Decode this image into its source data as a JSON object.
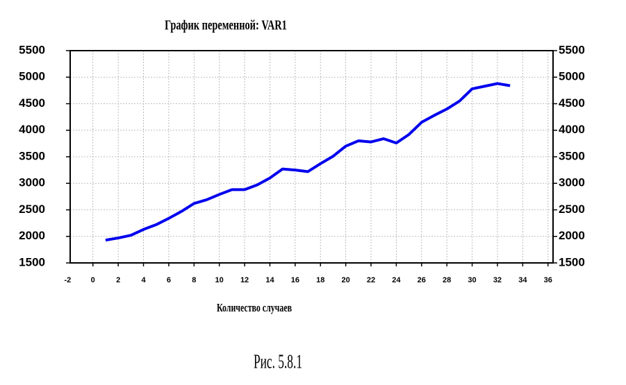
{
  "chart_data": {
    "type": "line",
    "title": "График переменной:  VAR1",
    "x_label": "Количество случаев",
    "caption": "Рис. 5.8.1",
    "x": [
      1,
      2,
      3,
      4,
      5,
      6,
      7,
      8,
      9,
      10,
      11,
      12,
      13,
      14,
      15,
      16,
      17,
      18,
      19,
      20,
      21,
      22,
      23,
      24,
      25,
      26,
      27,
      28,
      29,
      30,
      31,
      32,
      33
    ],
    "series": [
      {
        "name": "VAR1",
        "color": "#0000ee",
        "values": [
          1930,
          1970,
          2020,
          2130,
          2220,
          2340,
          2470,
          2620,
          2690,
          2790,
          2880,
          2880,
          2970,
          3100,
          3270,
          3250,
          3220,
          3370,
          3510,
          3700,
          3800,
          3780,
          3840,
          3760,
          3920,
          4150,
          4280,
          4400,
          4550,
          4780,
          4830,
          4880,
          4840
        ]
      }
    ],
    "xlim": [
      -1.8,
      36.4
    ],
    "xticks": [
      -2,
      0,
      2,
      4,
      6,
      8,
      10,
      12,
      14,
      16,
      18,
      20,
      22,
      24,
      26,
      28,
      30,
      32,
      34,
      36
    ],
    "ylim": [
      1500,
      5500
    ],
    "yticks": [
      1500,
      2000,
      2500,
      3000,
      3500,
      4000,
      4500,
      5000,
      5500
    ],
    "y2lim": [
      1500,
      5500
    ],
    "y2ticks": [
      1500,
      2000,
      2500,
      3000,
      3500,
      4000,
      4500,
      5000,
      5500
    ],
    "grid": true
  }
}
